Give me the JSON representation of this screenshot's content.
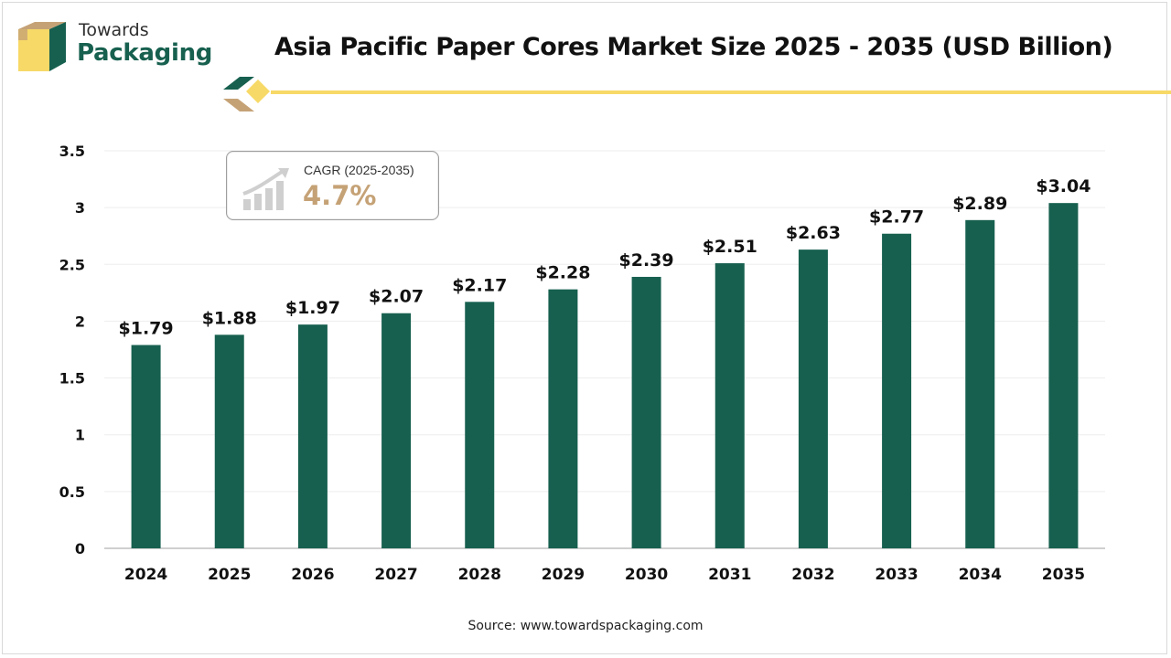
{
  "header": {
    "logo_line1": "Towards",
    "logo_line2": "Packaging",
    "title": "Asia Pacific Paper Cores Market Size 2025 - 2035 (USD Billion)"
  },
  "cagr": {
    "label": "CAGR (2025-2035)",
    "value": "4.7%"
  },
  "source": "Source: www.towardspackaging.com",
  "colors": {
    "bar": "#17604f",
    "accent_yellow": "#f7d967",
    "cagr_value": "#c5a276",
    "brand_green": "#17604f"
  },
  "chart_data": {
    "type": "bar",
    "title": "Asia Pacific Paper Cores Market Size 2025 - 2035 (USD Billion)",
    "categories": [
      "2024",
      "2025",
      "2026",
      "2027",
      "2028",
      "2029",
      "2030",
      "2031",
      "2032",
      "2033",
      "2034",
      "2035"
    ],
    "values": [
      1.79,
      1.88,
      1.97,
      2.07,
      2.17,
      2.28,
      2.39,
      2.51,
      2.63,
      2.77,
      2.89,
      3.04
    ],
    "data_labels": [
      "$1.79",
      "$1.88",
      "$1.97",
      "$2.07",
      "$2.17",
      "$2.28",
      "$2.39",
      "$2.51",
      "$2.63",
      "$2.77",
      "$2.89",
      "$3.04"
    ],
    "y_ticks": [
      "0",
      "0.5",
      "1",
      "1.5",
      "2",
      "2.5",
      "3",
      "3.5"
    ],
    "ylim": [
      0,
      3.5
    ],
    "xlabel": "",
    "ylabel": "",
    "grid": true,
    "legend": "none"
  }
}
